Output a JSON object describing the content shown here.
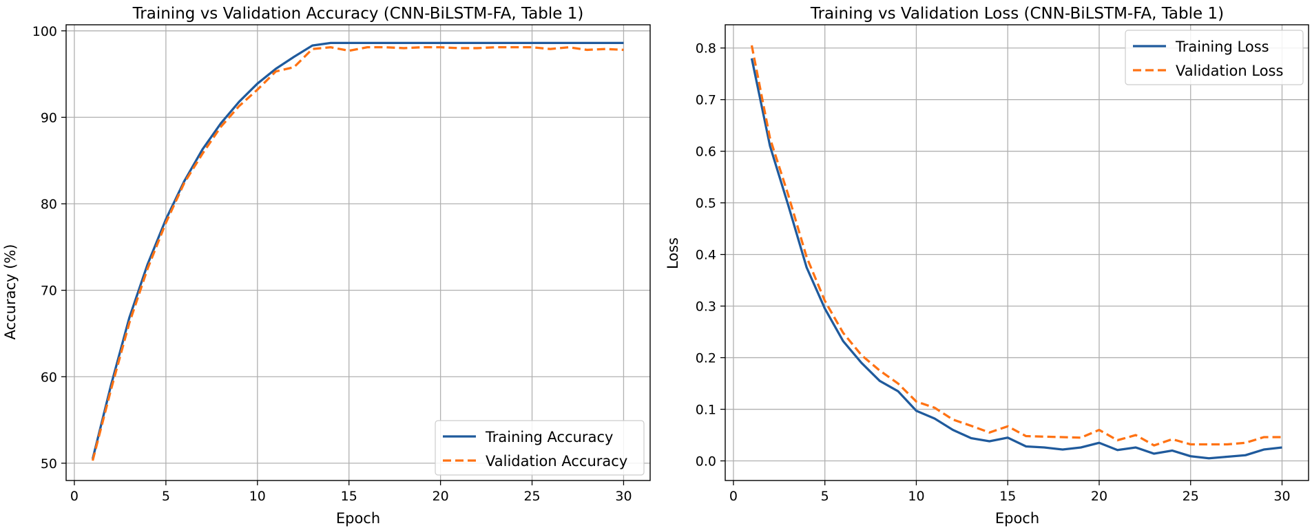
{
  "colors": {
    "train": "#1f5a9c",
    "val": "#ff7213",
    "grid": "#b0b0b0",
    "axis": "#000000"
  },
  "chart_data": [
    {
      "type": "line",
      "title": "Training vs Validation Accuracy (CNN-BiLSTM-FA, Table 1)",
      "xlabel": "Epoch",
      "ylabel": "Accuracy (%)",
      "xlim": [
        -0.45,
        31.45
      ],
      "ylim": [
        48.0,
        100.7
      ],
      "xticks": [
        0,
        5,
        10,
        15,
        20,
        25,
        30
      ],
      "yticks": [
        50,
        60,
        70,
        80,
        90,
        100
      ],
      "legend_position": "lower right",
      "series": [
        {
          "name": "Training Accuracy",
          "style": "solid",
          "x": [
            1,
            2,
            3,
            4,
            5,
            6,
            7,
            8,
            9,
            10,
            11,
            12,
            13,
            14,
            15,
            16,
            17,
            18,
            19,
            20,
            21,
            22,
            23,
            24,
            25,
            26,
            27,
            28,
            29,
            30
          ],
          "values": [
            50.5,
            59.0,
            66.8,
            73.0,
            78.2,
            82.6,
            86.3,
            89.3,
            91.8,
            93.9,
            95.6,
            97.0,
            98.3,
            98.6,
            98.6,
            98.6,
            98.6,
            98.6,
            98.6,
            98.6,
            98.6,
            98.6,
            98.6,
            98.6,
            98.6,
            98.6,
            98.6,
            98.6,
            98.6,
            98.6
          ]
        },
        {
          "name": "Validation Accuracy",
          "style": "dashed",
          "x": [
            1,
            2,
            3,
            4,
            5,
            6,
            7,
            8,
            9,
            10,
            11,
            12,
            13,
            14,
            15,
            16,
            17,
            18,
            19,
            20,
            21,
            22,
            23,
            24,
            25,
            26,
            27,
            28,
            29,
            30
          ],
          "values": [
            50.3,
            58.5,
            66.2,
            72.5,
            77.8,
            82.4,
            85.8,
            88.9,
            91.3,
            93.2,
            95.3,
            95.8,
            97.9,
            98.1,
            97.7,
            98.1,
            98.1,
            98.0,
            98.1,
            98.1,
            98.0,
            98.0,
            98.1,
            98.1,
            98.1,
            97.9,
            98.1,
            97.8,
            97.9,
            97.8
          ]
        }
      ]
    },
    {
      "type": "line",
      "title": "Training vs Validation Loss (CNN-BiLSTM-FA, Table 1)",
      "xlabel": "Epoch",
      "ylabel": "Loss",
      "xlim": [
        -0.45,
        31.45
      ],
      "ylim": [
        -0.038,
        0.845
      ],
      "xticks": [
        0,
        5,
        10,
        15,
        20,
        25,
        30
      ],
      "yticks": [
        0.0,
        0.1,
        0.2,
        0.3,
        0.4,
        0.5,
        0.6,
        0.7,
        0.8
      ],
      "legend_position": "upper right",
      "series": [
        {
          "name": "Training Loss",
          "style": "solid",
          "x": [
            1,
            2,
            3,
            4,
            5,
            6,
            7,
            8,
            9,
            10,
            11,
            12,
            13,
            14,
            15,
            16,
            17,
            18,
            19,
            20,
            21,
            22,
            23,
            24,
            25,
            26,
            27,
            28,
            29,
            30
          ],
          "values": [
            0.78,
            0.61,
            0.495,
            0.375,
            0.295,
            0.232,
            0.19,
            0.155,
            0.135,
            0.097,
            0.082,
            0.06,
            0.044,
            0.038,
            0.045,
            0.028,
            0.026,
            0.022,
            0.026,
            0.035,
            0.021,
            0.026,
            0.014,
            0.02,
            0.009,
            0.005,
            0.008,
            0.011,
            0.022,
            0.026
          ]
        },
        {
          "name": "Validation Loss",
          "style": "dashed",
          "x": [
            1,
            2,
            3,
            4,
            5,
            6,
            7,
            8,
            9,
            10,
            11,
            12,
            13,
            14,
            15,
            16,
            17,
            18,
            19,
            20,
            21,
            22,
            23,
            24,
            25,
            26,
            27,
            28,
            29,
            30
          ],
          "values": [
            0.805,
            0.625,
            0.515,
            0.395,
            0.31,
            0.248,
            0.205,
            0.175,
            0.15,
            0.115,
            0.103,
            0.08,
            0.068,
            0.055,
            0.067,
            0.048,
            0.047,
            0.046,
            0.045,
            0.06,
            0.04,
            0.05,
            0.03,
            0.042,
            0.032,
            0.032,
            0.032,
            0.035,
            0.046,
            0.046
          ]
        }
      ]
    }
  ]
}
